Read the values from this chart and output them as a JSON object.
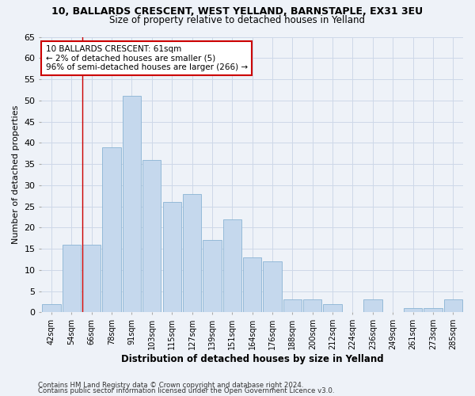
{
  "title": "10, BALLARDS CRESCENT, WEST YELLAND, BARNSTAPLE, EX31 3EU",
  "subtitle": "Size of property relative to detached houses in Yelland",
  "xlabel": "Distribution of detached houses by size in Yelland",
  "ylabel": "Number of detached properties",
  "bar_color": "#c5d8ed",
  "bar_edge_color": "#8ab4d4",
  "categories": [
    "42sqm",
    "54sqm",
    "66sqm",
    "78sqm",
    "91sqm",
    "103sqm",
    "115sqm",
    "127sqm",
    "139sqm",
    "151sqm",
    "164sqm",
    "176sqm",
    "188sqm",
    "200sqm",
    "212sqm",
    "224sqm",
    "236sqm",
    "249sqm",
    "261sqm",
    "273sqm",
    "285sqm"
  ],
  "values": [
    2,
    16,
    16,
    39,
    51,
    36,
    26,
    28,
    17,
    22,
    13,
    12,
    3,
    3,
    2,
    0,
    3,
    0,
    1,
    1,
    3
  ],
  "ylim": [
    0,
    65
  ],
  "yticks": [
    0,
    5,
    10,
    15,
    20,
    25,
    30,
    35,
    40,
    45,
    50,
    55,
    60,
    65
  ],
  "property_label": "10 BALLARDS CRESCENT: 61sqm",
  "pct_smaller": "2% of detached houses are smaller (5)",
  "pct_larger": "96% of semi-detached houses are larger (266)",
  "annotation_box_color": "#ffffff",
  "annotation_border_color": "#cc0000",
  "grid_color": "#cdd8e8",
  "background_color": "#eef2f8",
  "footer1": "Contains HM Land Registry data © Crown copyright and database right 2024.",
  "footer2": "Contains public sector information licensed under the Open Government Licence v3.0."
}
